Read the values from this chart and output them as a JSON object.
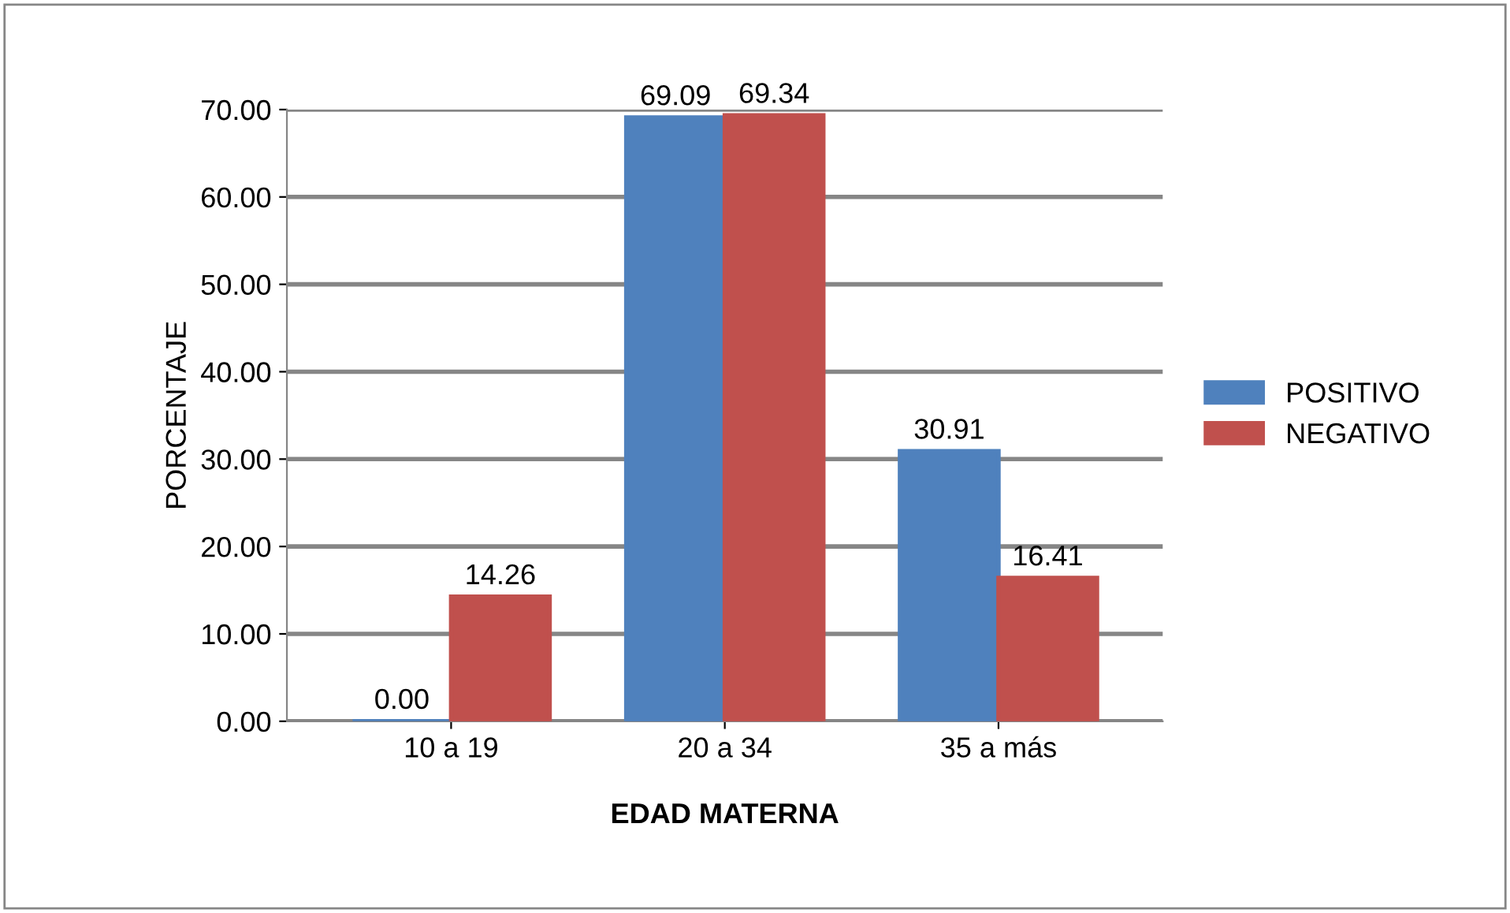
{
  "chart_data": {
    "type": "bar",
    "xlabel": "EDAD MATERNA",
    "ylabel": "PORCENTAJE",
    "categories": [
      "10 a 19",
      "20 a 34",
      "35 a más"
    ],
    "series": [
      {
        "name": "POSITIVO",
        "color": "#4f81bd",
        "values": [
          0.0,
          69.09,
          30.91
        ],
        "value_labels": [
          "0.00",
          "69.09",
          "30.91"
        ]
      },
      {
        "name": "NEGATIVO",
        "color": "#c0504d",
        "values": [
          14.26,
          69.34,
          16.41
        ],
        "value_labels": [
          "14.26",
          "69.34",
          "16.41"
        ]
      }
    ],
    "ylim": [
      0,
      70
    ],
    "yticks": [
      {
        "value": 0,
        "label": "0.00"
      },
      {
        "value": 10,
        "label": "10.00"
      },
      {
        "value": 20,
        "label": "20.00"
      },
      {
        "value": 30,
        "label": "30.00"
      },
      {
        "value": 40,
        "label": "40.00"
      },
      {
        "value": 50,
        "label": "50.00"
      },
      {
        "value": 60,
        "label": "60.00"
      },
      {
        "value": 70,
        "label": "70.00"
      }
    ],
    "grid": "y",
    "legend": "right"
  }
}
